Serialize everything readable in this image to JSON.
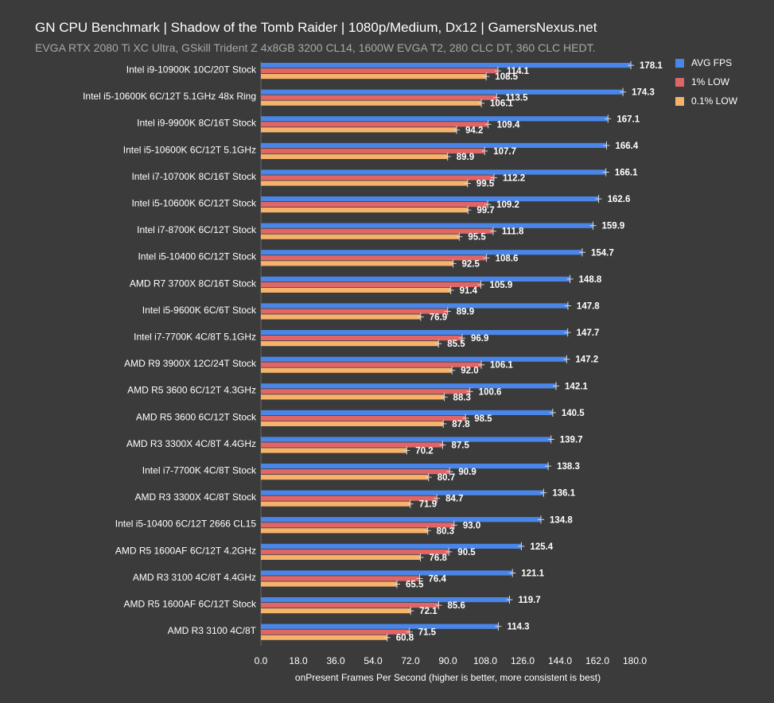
{
  "chart_data": {
    "type": "bar",
    "orientation": "horizontal",
    "title": "GN CPU Benchmark | Shadow of the Tomb Raider | 1080p/Medium, Dx12 | GamersNexus.net",
    "subtitle": "EVGA RTX 2080 Ti XC Ultra, GSkill Trident Z 4x8GB 3200 CL14, 1600W EVGA T2, 280 CLC DT, 360 CLC HEDT.",
    "xlabel": "onPresent Frames Per Second (higher is better, more consistent is best)",
    "xlim": [
      0,
      180
    ],
    "xticks": [
      "0.0",
      "18.0",
      "36.0",
      "54.0",
      "72.0",
      "90.0",
      "108.0",
      "126.0",
      "144.0",
      "162.0",
      "180.0"
    ],
    "legend_position": "top-right",
    "categories": [
      "Intel i9-10900K 10C/20T Stock",
      "Intel i5-10600K 6C/12T 5.1GHz 48x Ring",
      "Intel i9-9900K 8C/16T Stock",
      "Intel i5-10600K 6C/12T 5.1GHz",
      "Intel i7-10700K 8C/16T Stock",
      "Intel i5-10600K 6C/12T Stock",
      "Intel i7-8700K 6C/12T Stock",
      "Intel i5-10400 6C/12T Stock",
      "AMD R7 3700X 8C/16T Stock",
      "Intel i5-9600K 6C/6T Stock",
      "Intel i7-7700K 4C/8T 5.1GHz",
      "AMD R9 3900X 12C/24T Stock",
      "AMD R5 3600 6C/12T 4.3GHz",
      "AMD R5 3600 6C/12T Stock",
      "AMD R3 3300X 4C/8T 4.4GHz",
      "Intel i7-7700K 4C/8T Stock",
      "AMD R3 3300X 4C/8T Stock",
      "Intel i5-10400 6C/12T 2666 CL15",
      "AMD R5 1600AF 6C/12T 4.2GHz",
      "AMD R3 3100 4C/8T 4.4GHz",
      "AMD R5 1600AF 6C/12T Stock",
      "AMD R3 3100 4C/8T"
    ],
    "series": [
      {
        "name": "AVG FPS",
        "color": "#4a86e8",
        "values": [
          178.1,
          174.3,
          167.1,
          166.4,
          166.1,
          162.6,
          159.9,
          154.7,
          148.8,
          147.8,
          147.7,
          147.2,
          142.1,
          140.5,
          139.7,
          138.3,
          136.1,
          134.8,
          125.4,
          121.1,
          119.7,
          114.3
        ],
        "labels": [
          "178.1",
          "174.3",
          "167.1",
          "166.4",
          "166.1",
          "162.6",
          "159.9",
          "154.7",
          "148.8",
          "147.8",
          "147.7",
          "147.2",
          "142.1",
          "140.5",
          "139.7",
          "138.3",
          "136.1",
          "134.8",
          "125.4",
          "121.1",
          "119.7",
          "114.3"
        ]
      },
      {
        "name": "1% LOW",
        "color": "#e06666",
        "values": [
          114.1,
          113.5,
          109.4,
          107.7,
          112.2,
          109.2,
          111.8,
          108.6,
          105.9,
          89.9,
          96.9,
          106.1,
          100.6,
          98.5,
          87.5,
          90.9,
          84.7,
          93.0,
          90.5,
          76.4,
          85.6,
          71.5
        ],
        "labels": [
          "114.1",
          "113.5",
          "109.4",
          "107.7",
          "112.2",
          "109.2",
          "111.8",
          "108.6",
          "105.9",
          "89.9",
          "96.9",
          "106.1",
          "100.6",
          "98.5",
          "87.5",
          "90.9",
          "84.7",
          "93.0",
          "90.5",
          "76.4",
          "85.6",
          "71.5"
        ]
      },
      {
        "name": "0.1% LOW",
        "color": "#f6b26b",
        "values": [
          108.5,
          106.1,
          94.2,
          89.9,
          99.5,
          99.7,
          95.5,
          92.5,
          91.4,
          76.9,
          85.5,
          92.0,
          88.3,
          87.8,
          70.2,
          80.7,
          71.9,
          80.3,
          76.8,
          65.5,
          72.1,
          60.8
        ],
        "labels": [
          "108.5",
          "106.1",
          "94.2",
          "89.9",
          "99.5",
          "99.7",
          "95.5",
          "92.5",
          "91.4",
          "76.9",
          "85.5",
          "92.0",
          "88.3",
          "87.8",
          "70.2",
          "80.7",
          "71.9",
          "80.3",
          "76.8",
          "65.5",
          "72.1",
          "60.8"
        ]
      }
    ]
  }
}
